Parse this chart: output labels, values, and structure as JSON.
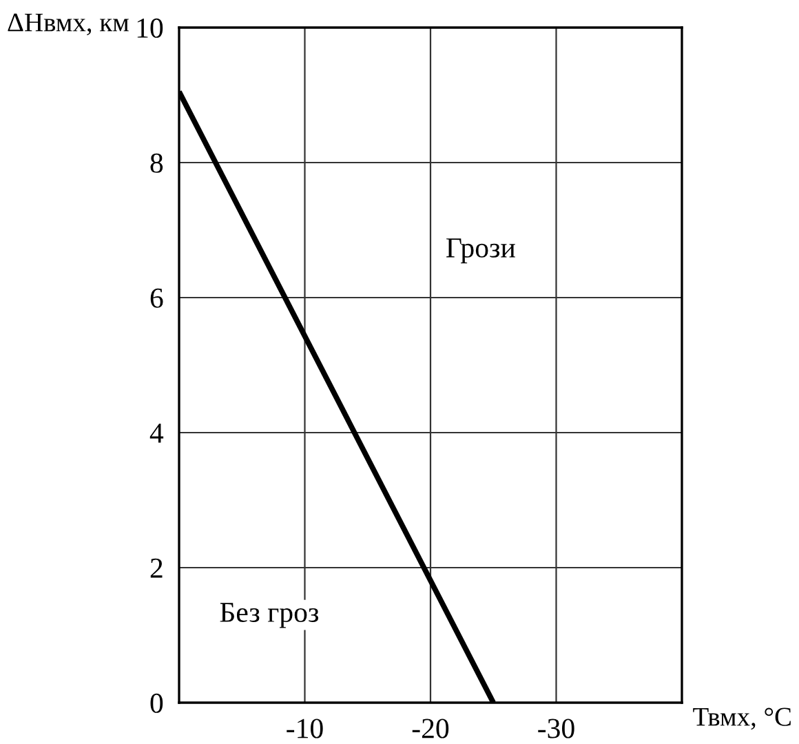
{
  "chart_data": {
    "type": "line",
    "xlabel": "Твмх, °C",
    "ylabel": "ΔНвмх, км",
    "x": [
      0,
      -25
    ],
    "series": [
      {
        "color": "#000000",
        "values": [
          9.05,
          0
        ]
      }
    ],
    "xlim": [
      0,
      -40
    ],
    "ylim": [
      0,
      10
    ],
    "xticks": [
      -10,
      -20,
      -30
    ],
    "yticks": [
      0,
      2,
      4,
      6,
      8,
      10
    ],
    "grid": true,
    "line_style": "solid",
    "marker": "none",
    "annotations": [
      "Грози",
      "Без гроз"
    ]
  }
}
